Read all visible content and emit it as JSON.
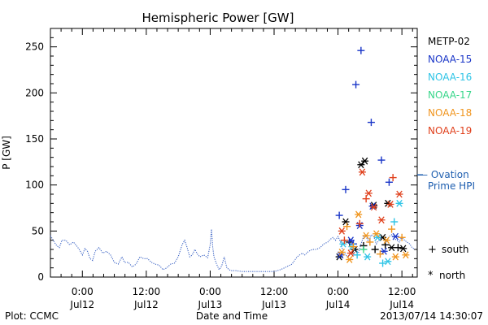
{
  "chart_data": {
    "type": "scatter",
    "title": "Hemispheric Power [GW]",
    "xlabel": "Date and Time",
    "ylabel": "P [GW]",
    "ylim": [
      0,
      270
    ],
    "xlim": [
      -0.25,
      2.62
    ],
    "x_unit": "days since 2013-07-12 00:00 UT",
    "yticks": [
      0,
      50,
      100,
      150,
      200,
      250
    ],
    "xticks": [
      {
        "x": 0.0,
        "top": "0:00",
        "bottom": "Jul12"
      },
      {
        "x": 0.5,
        "top": "12:00",
        "bottom": "Jul12"
      },
      {
        "x": 1.0,
        "top": "0:00",
        "bottom": "Jul13"
      },
      {
        "x": 1.5,
        "top": "12:00",
        "bottom": "Jul13"
      },
      {
        "x": 2.0,
        "top": "0:00",
        "bottom": "Jul14"
      },
      {
        "x": 2.5,
        "top": "12:00",
        "bottom": "Jul14"
      }
    ],
    "ovation": {
      "label_line1": "— Ovation",
      "label_line2": "Prime HPI",
      "value": 111,
      "color": "#1f5fb0"
    },
    "legend_position": "right",
    "legend": [
      {
        "name": "METP-02",
        "color": "#000000"
      },
      {
        "name": "NOAA-15",
        "color": "#1a36c8"
      },
      {
        "name": "NOAA-16",
        "color": "#2ec4e6"
      },
      {
        "name": "NOAA-17",
        "color": "#37d68a"
      },
      {
        "name": "NOAA-18",
        "color": "#f0951e"
      },
      {
        "name": "NOAA-19",
        "color": "#e0401c"
      }
    ],
    "symbol_legend": [
      {
        "symbol": "+",
        "label": "south"
      },
      {
        "symbol": "*",
        "label": "north"
      }
    ],
    "background_trace": {
      "color": "#3a62c4",
      "points": [
        [
          -0.25,
          45
        ],
        [
          -0.22,
          38
        ],
        [
          -0.2,
          34
        ],
        [
          -0.18,
          32
        ],
        [
          -0.16,
          40
        ],
        [
          -0.13,
          40
        ],
        [
          -0.1,
          35
        ],
        [
          -0.07,
          38
        ],
        [
          -0.04,
          33
        ],
        [
          -0.02,
          29
        ],
        [
          0.0,
          24
        ],
        [
          0.02,
          31
        ],
        [
          0.04,
          28
        ],
        [
          0.06,
          20
        ],
        [
          0.08,
          18
        ],
        [
          0.1,
          28
        ],
        [
          0.13,
          32
        ],
        [
          0.16,
          26
        ],
        [
          0.19,
          28
        ],
        [
          0.22,
          24
        ],
        [
          0.25,
          16
        ],
        [
          0.28,
          14
        ],
        [
          0.31,
          22
        ],
        [
          0.33,
          16
        ],
        [
          0.36,
          16
        ],
        [
          0.39,
          11
        ],
        [
          0.42,
          14
        ],
        [
          0.45,
          22
        ],
        [
          0.48,
          20
        ],
        [
          0.51,
          20
        ],
        [
          0.54,
          16
        ],
        [
          0.57,
          14
        ],
        [
          0.6,
          13
        ],
        [
          0.63,
          8
        ],
        [
          0.66,
          10
        ],
        [
          0.69,
          14
        ],
        [
          0.72,
          15
        ],
        [
          0.75,
          22
        ],
        [
          0.78,
          35
        ],
        [
          0.8,
          40
        ],
        [
          0.82,
          32
        ],
        [
          0.84,
          22
        ],
        [
          0.86,
          24
        ],
        [
          0.88,
          30
        ],
        [
          0.9,
          25
        ],
        [
          0.92,
          22
        ],
        [
          0.95,
          24
        ],
        [
          0.98,
          21
        ],
        [
          1.0,
          35
        ],
        [
          1.01,
          52
        ],
        [
          1.02,
          32
        ],
        [
          1.03,
          22
        ],
        [
          1.05,
          14
        ],
        [
          1.07,
          8
        ],
        [
          1.09,
          12
        ],
        [
          1.11,
          22
        ],
        [
          1.13,
          10
        ],
        [
          1.16,
          7
        ],
        [
          1.2,
          7
        ],
        [
          1.25,
          6
        ],
        [
          1.3,
          6
        ],
        [
          1.35,
          6
        ],
        [
          1.4,
          6
        ],
        [
          1.45,
          6
        ],
        [
          1.5,
          6
        ],
        [
          1.55,
          8
        ],
        [
          1.58,
          10
        ],
        [
          1.61,
          12
        ],
        [
          1.64,
          14
        ],
        [
          1.66,
          18
        ],
        [
          1.68,
          22
        ],
        [
          1.7,
          24
        ],
        [
          1.72,
          26
        ],
        [
          1.74,
          24
        ],
        [
          1.77,
          28
        ],
        [
          1.8,
          30
        ],
        [
          1.83,
          30
        ],
        [
          1.86,
          32
        ],
        [
          1.89,
          36
        ],
        [
          1.92,
          38
        ],
        [
          1.94,
          41
        ],
        [
          1.96,
          43
        ],
        [
          1.98,
          40
        ],
        [
          2.0,
          44
        ],
        [
          2.02,
          38
        ],
        [
          2.04,
          28
        ],
        [
          2.06,
          24
        ],
        [
          2.08,
          22
        ],
        [
          2.1,
          26
        ],
        [
          2.12,
          24
        ],
        [
          2.14,
          30
        ],
        [
          2.16,
          26
        ],
        [
          2.18,
          36
        ],
        [
          2.2,
          44
        ],
        [
          2.22,
          44
        ],
        [
          2.24,
          38
        ],
        [
          2.26,
          46
        ],
        [
          2.28,
          44
        ],
        [
          2.3,
          36
        ],
        [
          2.32,
          40
        ],
        [
          2.34,
          44
        ],
        [
          2.36,
          42
        ],
        [
          2.38,
          38
        ],
        [
          2.4,
          44
        ],
        [
          2.42,
          46
        ],
        [
          2.44,
          42
        ],
        [
          2.46,
          40
        ],
        [
          2.48,
          38
        ],
        [
          2.5,
          44
        ],
        [
          2.52,
          40
        ],
        [
          2.54,
          38
        ],
        [
          2.56,
          36
        ],
        [
          2.58,
          32
        ],
        [
          2.6,
          30
        ]
      ]
    },
    "series": [
      {
        "name": "METP-02",
        "color": "#000000",
        "points": [
          {
            "x": 2.01,
            "y": 22,
            "m": "*"
          },
          {
            "x": 2.06,
            "y": 60,
            "m": "*"
          },
          {
            "x": 2.13,
            "y": 30,
            "m": "*"
          },
          {
            "x": 2.18,
            "y": 122,
            "m": "*"
          },
          {
            "x": 2.21,
            "y": 126,
            "m": "*"
          },
          {
            "x": 2.28,
            "y": 78,
            "m": "*"
          },
          {
            "x": 2.35,
            "y": 43,
            "m": "*"
          },
          {
            "x": 2.39,
            "y": 80,
            "m": "*"
          },
          {
            "x": 2.42,
            "y": 32,
            "m": "*"
          },
          {
            "x": 2.51,
            "y": 31,
            "m": "*"
          },
          {
            "x": 2.09,
            "y": 38,
            "m": "+"
          },
          {
            "x": 2.2,
            "y": 34,
            "m": "+"
          },
          {
            "x": 2.29,
            "y": 30,
            "m": "+"
          },
          {
            "x": 2.37,
            "y": 35,
            "m": "+"
          },
          {
            "x": 2.47,
            "y": 32,
            "m": "+"
          }
        ]
      },
      {
        "name": "NOAA-15",
        "color": "#1a36c8",
        "points": [
          {
            "x": 2.01,
            "y": 67,
            "m": "+"
          },
          {
            "x": 2.06,
            "y": 95,
            "m": "+"
          },
          {
            "x": 2.12,
            "y": 36,
            "m": "+"
          },
          {
            "x": 2.14,
            "y": 209,
            "m": "+"
          },
          {
            "x": 2.18,
            "y": 246,
            "m": "+"
          },
          {
            "x": 2.26,
            "y": 168,
            "m": "+"
          },
          {
            "x": 2.34,
            "y": 127,
            "m": "+"
          },
          {
            "x": 2.4,
            "y": 103,
            "m": "+"
          },
          {
            "x": 2.02,
            "y": 24,
            "m": "*"
          },
          {
            "x": 2.1,
            "y": 40,
            "m": "*"
          },
          {
            "x": 2.17,
            "y": 56,
            "m": "*"
          },
          {
            "x": 2.27,
            "y": 77,
            "m": "*"
          },
          {
            "x": 2.36,
            "y": 28,
            "m": "*"
          },
          {
            "x": 2.45,
            "y": 44,
            "m": "*"
          }
        ]
      },
      {
        "name": "NOAA-16",
        "color": "#2ec4e6",
        "points": [
          {
            "x": 2.04,
            "y": 36,
            "m": "*"
          },
          {
            "x": 2.11,
            "y": 33,
            "m": "*"
          },
          {
            "x": 2.23,
            "y": 22,
            "m": "*"
          },
          {
            "x": 2.31,
            "y": 43,
            "m": "*"
          },
          {
            "x": 2.39,
            "y": 17,
            "m": "*"
          },
          {
            "x": 2.48,
            "y": 80,
            "m": "*"
          },
          {
            "x": 2.15,
            "y": 24,
            "m": "+"
          },
          {
            "x": 2.35,
            "y": 15,
            "m": "+"
          },
          {
            "x": 2.44,
            "y": 60,
            "m": "+"
          }
        ]
      },
      {
        "name": "NOAA-17",
        "color": "#37d68a",
        "points": [
          {
            "x": 2.2,
            "y": 30,
            "m": "+"
          }
        ]
      },
      {
        "name": "NOAA-18",
        "color": "#f0951e",
        "points": [
          {
            "x": 2.03,
            "y": 27,
            "m": "*"
          },
          {
            "x": 2.09,
            "y": 19,
            "m": "*"
          },
          {
            "x": 2.16,
            "y": 68,
            "m": "*"
          },
          {
            "x": 2.22,
            "y": 45,
            "m": "*"
          },
          {
            "x": 2.3,
            "y": 47,
            "m": "*"
          },
          {
            "x": 2.38,
            "y": 40,
            "m": "*"
          },
          {
            "x": 2.45,
            "y": 22,
            "m": "*"
          },
          {
            "x": 2.53,
            "y": 24,
            "m": "*"
          },
          {
            "x": 2.12,
            "y": 33,
            "m": "+"
          },
          {
            "x": 2.25,
            "y": 38,
            "m": "+"
          },
          {
            "x": 2.33,
            "y": 25,
            "m": "+"
          },
          {
            "x": 2.42,
            "y": 52,
            "m": "+"
          },
          {
            "x": 2.07,
            "y": 55,
            "m": "+"
          },
          {
            "x": 2.5,
            "y": 43,
            "m": "+"
          }
        ]
      },
      {
        "name": "NOAA-19",
        "color": "#e0401c",
        "points": [
          {
            "x": 2.03,
            "y": 50,
            "m": "*"
          },
          {
            "x": 2.1,
            "y": 26,
            "m": "*"
          },
          {
            "x": 2.19,
            "y": 114,
            "m": "*"
          },
          {
            "x": 2.24,
            "y": 91,
            "m": "*"
          },
          {
            "x": 2.28,
            "y": 76,
            "m": "*"
          },
          {
            "x": 2.34,
            "y": 62,
            "m": "*"
          },
          {
            "x": 2.41,
            "y": 79,
            "m": "*"
          },
          {
            "x": 2.48,
            "y": 90,
            "m": "*"
          },
          {
            "x": 2.17,
            "y": 58,
            "m": "+"
          },
          {
            "x": 2.22,
            "y": 85,
            "m": "+"
          },
          {
            "x": 2.43,
            "y": 108,
            "m": "+"
          },
          {
            "x": 2.05,
            "y": 40,
            "m": "+"
          }
        ]
      }
    ]
  },
  "footer": {
    "left": "Plot: CCMC",
    "center": "Date and Time",
    "right": "2013/07/14 14:30:07"
  }
}
